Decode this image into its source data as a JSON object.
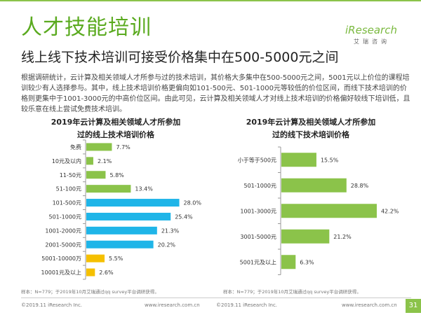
{
  "header": {
    "title": "人才技能培训",
    "subtitle": "线上线下技术培训可接受价格集中在500-5000元之间"
  },
  "logo": {
    "word": "iResearch",
    "sub": "艾瑞咨询"
  },
  "paragraph": "根据调研统计，云计算及相关领域人才所参与过的技术培训，其价格大多集中在500-5000元之间，5001元以上价位的课程培训较少有人选择参与。其中，线上技术培训价格更偏向如101-500元、501-1000元等较低的价位区间，而线下技术培训的价格则更集中于1001-3000元的中高价位区间。由此可见，云计算及相关领域人才对线上技术培训的价格偏好较线下培训低，且较乐意在线上尝试免费技术培训。",
  "chart_data": [
    {
      "type": "bar",
      "orientation": "horizontal",
      "title": "2019年云计算及相关领域人才所参加过的线上技术培训价格",
      "title_lines": [
        "2019年云计算及相关领域人才所参加",
        "过的线上技术培训价格"
      ],
      "categories": [
        "免费",
        "10元及以内",
        "11-50元",
        "51-100元",
        "101-500元",
        "501-1000元",
        "1001-2000元",
        "2001-5000元",
        "5001-10000万",
        "10001元及以上"
      ],
      "values": [
        7.7,
        2.1,
        5.8,
        13.4,
        28.0,
        25.4,
        21.3,
        20.2,
        5.5,
        2.6
      ],
      "value_labels": [
        "7.7%",
        "2.1%",
        "5.8%",
        "13.4%",
        "28.0%",
        "25.4%",
        "21.3%",
        "20.2%",
        "5.5%",
        "2.6%"
      ],
      "unit": "%",
      "bar_colors": [
        "#8bc34a",
        "#8bc34a",
        "#8bc34a",
        "#8bc34a",
        "#1fb5e8",
        "#1fb5e8",
        "#1fb5e8",
        "#1fb5e8",
        "#f5c000",
        "#f5c000"
      ],
      "xlim": [
        0,
        30
      ],
      "grid": false,
      "legend": "none"
    },
    {
      "type": "bar",
      "orientation": "horizontal",
      "title": "2019年云计算及相关领域人才所参加过的线下技术培训价格",
      "title_lines": [
        "2019年云计算及相关领域人才所参加",
        "过的线下技术培训价格"
      ],
      "categories": [
        "小于等于500元",
        "501-1000元",
        "1001-3000元",
        "3001-5000元",
        "5001元及以上"
      ],
      "values": [
        15.5,
        28.8,
        42.2,
        21.2,
        6.3
      ],
      "value_labels": [
        "15.5%",
        "28.8%",
        "42.2%",
        "21.2%",
        "6.3%"
      ],
      "unit": "%",
      "bar_colors": [
        "#8bc34a",
        "#8bc34a",
        "#8bc34a",
        "#8bc34a",
        "#8bc34a"
      ],
      "xlim": [
        0,
        45
      ],
      "grid": false,
      "legend": "none"
    }
  ],
  "sources": [
    "样本：N=779；于2019年10月艾瑞通过qq survey平台调研获得。",
    "样本：N=779；于2019年10月艾瑞通过qq survey平台调研获得。"
  ],
  "footer": {
    "copyright_left": "©2019.11 iResearch Inc.",
    "url_left": "www.iresearch.com.cn",
    "copyright_right": "©2019.11 iResearch Inc.",
    "url_right": "www.iresearch.com.cn",
    "page_number": "31"
  },
  "colors": {
    "brand_green": "#5aaa1f",
    "accent_green": "#8bc34a",
    "blue": "#1fb5e8",
    "yellow": "#f5c000"
  }
}
